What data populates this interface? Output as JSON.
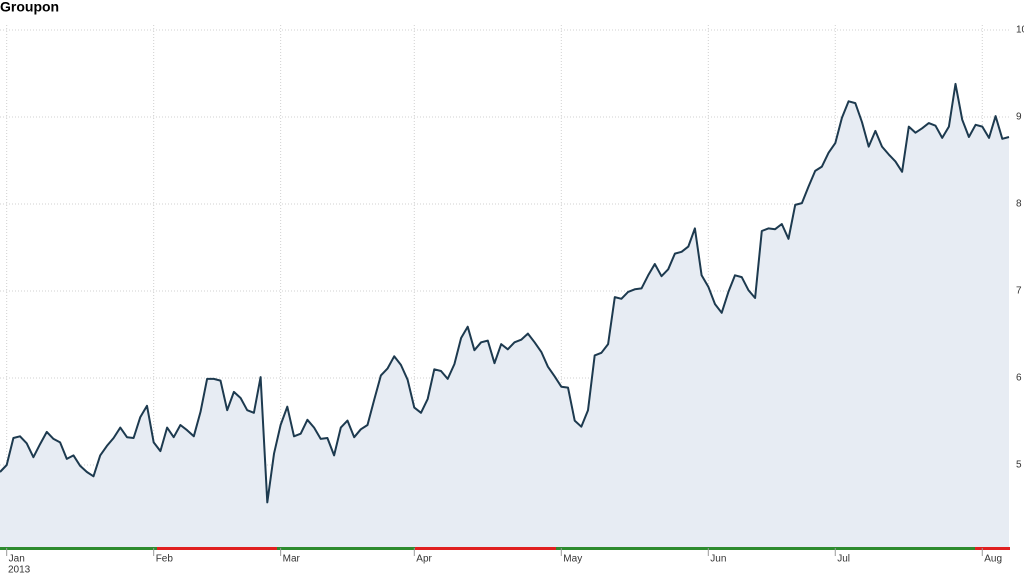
{
  "chart_data": {
    "type": "line",
    "title": "Groupon",
    "year": "2013",
    "color": "#1d3a4f",
    "fill": "#e7ecf3",
    "ylim": [
      4,
      10
    ],
    "yticks": [
      5,
      6,
      7,
      8,
      9,
      10
    ],
    "grid": true,
    "xticks": [
      {
        "value": 1,
        "label": "Jan"
      },
      {
        "value": 23,
        "label": "Feb"
      },
      {
        "value": 42,
        "label": "Mar"
      },
      {
        "value": 62,
        "label": "Apr"
      },
      {
        "value": 84,
        "label": "May"
      },
      {
        "value": 106,
        "label": "Jun"
      },
      {
        "value": 125,
        "label": "Jul"
      },
      {
        "value": 147,
        "label": "Aug"
      }
    ],
    "values": [
      4.92,
      5.0,
      5.31,
      5.33,
      5.25,
      5.09,
      5.24,
      5.38,
      5.3,
      5.26,
      5.07,
      5.11,
      4.99,
      4.92,
      4.87,
      5.11,
      5.22,
      5.31,
      5.43,
      5.32,
      5.31,
      5.55,
      5.68,
      5.26,
      5.16,
      5.43,
      5.32,
      5.46,
      5.4,
      5.33,
      5.61,
      5.99,
      5.99,
      5.97,
      5.63,
      5.84,
      5.77,
      5.63,
      5.6,
      6.01,
      4.57,
      5.13,
      5.46,
      5.67,
      5.33,
      5.36,
      5.52,
      5.43,
      5.3,
      5.31,
      5.11,
      5.43,
      5.51,
      5.32,
      5.41,
      5.46,
      5.75,
      6.03,
      6.11,
      6.25,
      6.15,
      5.98,
      5.66,
      5.6,
      5.76,
      6.1,
      6.08,
      5.99,
      6.16,
      6.46,
      6.59,
      6.32,
      6.41,
      6.43,
      6.17,
      6.39,
      6.33,
      6.41,
      6.44,
      6.51,
      6.41,
      6.3,
      6.13,
      6.02,
      5.9,
      5.89,
      5.51,
      5.44,
      5.63,
      6.26,
      6.29,
      6.39,
      6.93,
      6.91,
      6.99,
      7.02,
      7.03,
      7.18,
      7.31,
      7.17,
      7.25,
      7.43,
      7.45,
      7.51,
      7.72,
      7.18,
      7.05,
      6.85,
      6.75,
      6.99,
      7.18,
      7.16,
      7.01,
      6.92,
      7.69,
      7.72,
      7.71,
      7.77,
      7.6,
      7.99,
      8.01,
      8.2,
      8.38,
      8.43,
      8.59,
      8.7,
      8.99,
      9.18,
      9.16,
      8.94,
      8.66,
      8.84,
      8.66,
      8.57,
      8.49,
      8.37,
      8.89,
      8.82,
      8.87,
      8.93,
      8.9,
      8.76,
      8.89,
      9.38,
      8.97,
      8.77,
      8.91,
      8.89,
      8.76,
      9.01,
      8.75,
      8.77
    ]
  }
}
